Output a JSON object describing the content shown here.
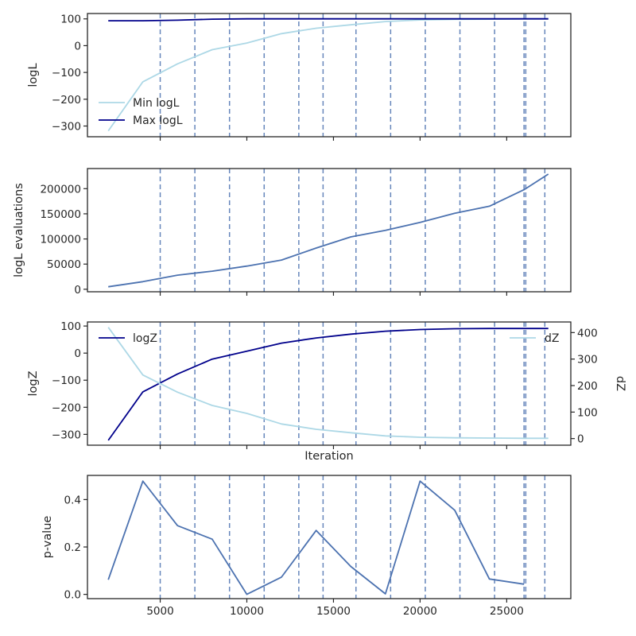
{
  "chart_data": [
    {
      "id": "logL-panel",
      "type": "line",
      "ylabel": "logL",
      "xlabel": "",
      "xlim": [
        800,
        28700
      ],
      "ylim": [
        -340,
        120
      ],
      "yticks": [
        -300,
        -200,
        -100,
        0,
        100
      ],
      "ytick_labels": [
        "−300",
        "−200",
        "−100",
        "0",
        "100"
      ],
      "xtick_labels_shown": false,
      "legend": "lower-left",
      "series": [
        {
          "name": "Min logL",
          "color": "#add8e6",
          "x": [
            2000,
            4000,
            6000,
            8000,
            10000,
            12000,
            14000,
            16000,
            18000,
            20000,
            22000,
            24000,
            26000,
            27400
          ],
          "y": [
            -318,
            -135,
            -68,
            -15,
            10,
            45,
            65,
            78,
            90,
            96,
            98,
            99,
            100,
            100
          ]
        },
        {
          "name": "Max logL",
          "color": "#00008b",
          "x": [
            2000,
            4000,
            6000,
            8000,
            10000,
            12000,
            14000,
            16000,
            18000,
            20000,
            22000,
            24000,
            26000,
            27400
          ],
          "y": [
            93,
            93,
            95,
            99,
            100,
            100,
            100,
            100,
            100,
            100,
            100,
            100,
            100,
            100
          ]
        }
      ]
    },
    {
      "id": "evaluations-panel",
      "type": "line",
      "ylabel": "logL evaluations",
      "xlabel": "",
      "xlim": [
        800,
        28700
      ],
      "ylim": [
        -5000,
        240000
      ],
      "yticks": [
        0,
        50000,
        100000,
        150000,
        200000
      ],
      "ytick_labels": [
        "0",
        "50000",
        "100000",
        "150000",
        "200000"
      ],
      "xtick_labels_shown": false,
      "series": [
        {
          "color": "#4c72b0",
          "x": [
            2000,
            4000,
            6000,
            8000,
            10000,
            12000,
            14000,
            16000,
            18000,
            20000,
            22000,
            24000,
            26000,
            27400
          ],
          "y": [
            5000,
            15000,
            28000,
            36000,
            46000,
            58000,
            82000,
            104000,
            117000,
            133000,
            151000,
            165000,
            198000,
            229000
          ]
        }
      ]
    },
    {
      "id": "logZ-panel",
      "type": "line",
      "ylabel": "logZ",
      "ylabel_right": "dZ",
      "xlabel": "Iteration",
      "xlim": [
        800,
        28700
      ],
      "ylim": [
        -340,
        115
      ],
      "yticks": [
        -300,
        -200,
        -100,
        0,
        100
      ],
      "ytick_labels": [
        "−300",
        "−200",
        "−100",
        "0",
        "100"
      ],
      "ylim_right": [
        -25,
        440
      ],
      "yticks_right": [
        0,
        100,
        200,
        300,
        400
      ],
      "ytick_labels_right": [
        "0",
        "100",
        "200",
        "300",
        "400"
      ],
      "xtick_labels_shown": false,
      "legend_left": "upper-left",
      "legend_right": "upper-right",
      "series": [
        {
          "name": "logZ",
          "axis": "left",
          "color": "#00008b",
          "x": [
            2000,
            4000,
            6000,
            8000,
            10000,
            12000,
            14000,
            16000,
            18000,
            20000,
            22000,
            24000,
            26000,
            27400
          ],
          "y": [
            -322,
            -143,
            -77,
            -22,
            7,
            37,
            56,
            70,
            81,
            87,
            90,
            91,
            91,
            91
          ]
        },
        {
          "name": "dZ",
          "axis": "right",
          "color": "#add8e6",
          "x": [
            2000,
            4000,
            6000,
            8000,
            10000,
            12000,
            14000,
            16000,
            18000,
            20000,
            22000,
            24000,
            26000,
            27400
          ],
          "y": [
            420,
            240,
            175,
            125,
            95,
            55,
            35,
            22,
            10,
            5,
            3,
            2,
            1,
            1
          ]
        }
      ]
    },
    {
      "id": "pvalue-panel",
      "type": "line",
      "ylabel": "p-value",
      "xlabel": "",
      "xlim": [
        800,
        28700
      ],
      "ylim": [
        -0.018,
        0.502
      ],
      "yticks": [
        0.0,
        0.2,
        0.4
      ],
      "ytick_labels": [
        "0.0",
        "0.2",
        "0.4"
      ],
      "xticks": [
        5000,
        10000,
        15000,
        20000,
        25000
      ],
      "xtick_labels": [
        "5000",
        "10000",
        "15000",
        "20000",
        "25000"
      ],
      "xtick_labels_shown": true,
      "series": [
        {
          "color": "#4c72b0",
          "x": [
            2000,
            4000,
            6000,
            8000,
            10000,
            12000,
            14000,
            16000,
            18000,
            20000,
            22000,
            24000,
            26000
          ],
          "y": [
            0.062,
            0.478,
            0.29,
            0.233,
            0.0,
            0.073,
            0.27,
            0.118,
            0.002,
            0.478,
            0.355,
            0.065,
            0.043
          ]
        }
      ]
    }
  ],
  "shared": {
    "xticks": [
      5000,
      10000,
      15000,
      20000,
      25000
    ],
    "vlines": [
      5000,
      7000,
      9000,
      11000,
      13000,
      14400,
      16300,
      18300,
      20300,
      22300,
      24300,
      26000,
      26100,
      27200
    ],
    "vline_color": "#4c72b0",
    "frame_color": "#262626"
  }
}
